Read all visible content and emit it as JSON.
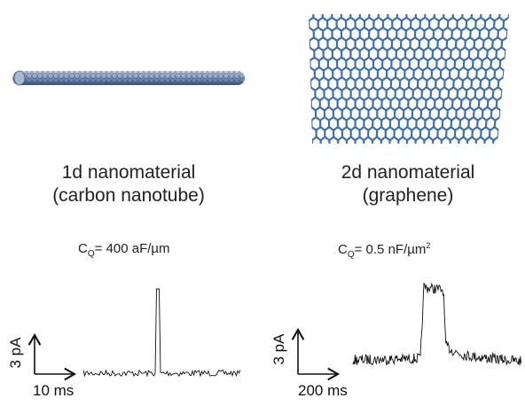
{
  "left_panel": {
    "caption_line1": "1d nanomaterial",
    "caption_line2": "(carbon nanotube)",
    "cq_prefix": "C",
    "cq_sub": "Q",
    "cq_value": "= 400 aF/µm",
    "scale_x": "10 ms",
    "scale_y": "3 pA"
  },
  "right_panel": {
    "caption_line1": "2d nanomaterial",
    "caption_line2": "(graphene)",
    "cq_prefix": "C",
    "cq_sub": "Q",
    "cq_value": "= 0.5 nF/µm",
    "cq_sup": "2",
    "scale_x": "200 ms",
    "scale_y": "3 pA"
  },
  "colors": {
    "lattice": "#3f6fa6",
    "trace": "#111111"
  }
}
